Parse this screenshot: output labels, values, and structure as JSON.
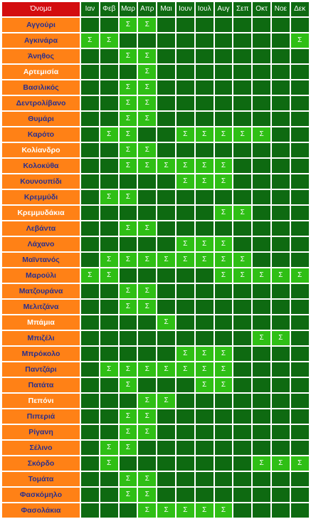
{
  "header": {
    "name_label": "Όνομα",
    "months": [
      "Ιαν",
      "Φεβ",
      "Μαρ",
      "Απρ",
      "Μαι",
      "Ιουν",
      "Ιουλ",
      "Αυγ",
      "Σεπ",
      "Οκτ",
      "Νοε",
      "Δεκ"
    ]
  },
  "sow_mark": "Σ",
  "rows": [
    {
      "name": "Αγγούρι",
      "sow": [
        3,
        4
      ]
    },
    {
      "name": "Αγκινάρα",
      "sow": [
        1,
        2,
        12
      ]
    },
    {
      "name": "Άνηθος",
      "sow": [
        3,
        4
      ]
    },
    {
      "name": "Αρτεμισία",
      "sow": [
        4
      ],
      "white": true
    },
    {
      "name": "Βασιλικός",
      "sow": [
        3,
        4
      ]
    },
    {
      "name": "Δεντρολίβανο",
      "sow": [
        3,
        4
      ]
    },
    {
      "name": "Θυμάρι",
      "sow": [
        3,
        4
      ]
    },
    {
      "name": "Καρότο",
      "sow": [
        2,
        3,
        6,
        7,
        8,
        9,
        10
      ]
    },
    {
      "name": "Κολίανδρο",
      "sow": [
        3,
        4
      ],
      "white": true
    },
    {
      "name": "Κολοκύθα",
      "sow": [
        3,
        4,
        5,
        6,
        7,
        8
      ]
    },
    {
      "name": "Κουνουπίδι",
      "sow": [
        6,
        7,
        8
      ]
    },
    {
      "name": "Κρεμμύδι",
      "sow": [
        2,
        3
      ]
    },
    {
      "name": "Κρεμμυδάκια",
      "sow": [
        8,
        9
      ],
      "white": true
    },
    {
      "name": "Λεβάντα",
      "sow": [
        3,
        4
      ]
    },
    {
      "name": "Λάχανο",
      "sow": [
        6,
        7,
        8
      ]
    },
    {
      "name": "Μαϊντανός",
      "sow": [
        2,
        3,
        4,
        5,
        6,
        7,
        8,
        9
      ]
    },
    {
      "name": "Μαρούλι",
      "sow": [
        1,
        2,
        8,
        9,
        10,
        11,
        12
      ]
    },
    {
      "name": "Ματζουράνα",
      "sow": [
        3,
        4
      ]
    },
    {
      "name": "Μελιτζάνα",
      "sow": [
        3,
        4
      ]
    },
    {
      "name": "Μπάμια",
      "sow": [
        5
      ],
      "white": true
    },
    {
      "name": "Μπιζέλι",
      "sow": [
        10,
        11
      ]
    },
    {
      "name": "Μπρόκολο",
      "sow": [
        6,
        7,
        8
      ]
    },
    {
      "name": "Παντζάρι",
      "sow": [
        2,
        3,
        4,
        5,
        6,
        7,
        8
      ]
    },
    {
      "name": "Πατάτα",
      "sow": [
        3,
        7,
        8
      ]
    },
    {
      "name": "Πεπόνι",
      "sow": [
        4,
        5
      ],
      "white": true
    },
    {
      "name": "Πιπεριά",
      "sow": [
        3,
        4
      ]
    },
    {
      "name": "Ρίγανη",
      "sow": [
        3,
        4
      ]
    },
    {
      "name": "Σέλινο",
      "sow": [
        2,
        3
      ]
    },
    {
      "name": "Σκόρδο",
      "sow": [
        2,
        10,
        11,
        12
      ]
    },
    {
      "name": "Τομάτα",
      "sow": [
        3,
        4
      ]
    },
    {
      "name": "Φασκόμηλο",
      "sow": [
        3,
        4
      ]
    },
    {
      "name": "Φασολάκια",
      "sow": [
        4,
        5,
        6,
        7,
        8
      ]
    }
  ]
}
